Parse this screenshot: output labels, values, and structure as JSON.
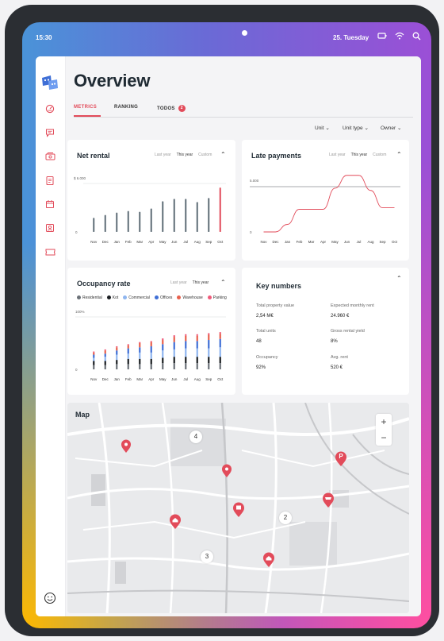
{
  "status_bar": {
    "time": "15:30",
    "date": "25. Tuesday"
  },
  "page": {
    "title": "Overview"
  },
  "tabs": [
    {
      "label": "METRICS",
      "active": true
    },
    {
      "label": "RANKING",
      "active": false
    },
    {
      "label": "TODOS",
      "active": false,
      "badge": "2"
    }
  ],
  "filters": [
    {
      "label": "Unit"
    },
    {
      "label": "Unit type"
    },
    {
      "label": "Owner"
    }
  ],
  "sidebar_icons": [
    "app-logo-icon",
    "dashboard-icon",
    "chat-icon",
    "money-icon",
    "documents-icon",
    "calendar-icon",
    "contacts-icon",
    "tickets-icon",
    "support-icon"
  ],
  "net_rental": {
    "title": "Net rental",
    "period_tabs": [
      "Last year",
      "This year",
      "Custom"
    ],
    "selected_period": "This year"
  },
  "late_payments": {
    "title": "Late payments",
    "period_tabs": [
      "Last year",
      "This year",
      "Custom"
    ],
    "selected_period": "This year"
  },
  "occupancy": {
    "title": "Occupancy rate",
    "period_tabs": [
      "Last year",
      "This year"
    ],
    "selected_period": "This year",
    "legend": [
      {
        "name": "Residential",
        "color": "#6b7178"
      },
      {
        "name": "Kot",
        "color": "#1b1e22"
      },
      {
        "name": "Commercial",
        "color": "#8fb6ef"
      },
      {
        "name": "Offices",
        "color": "#3f6fd6"
      },
      {
        "name": "Warehouse",
        "color": "#e8604c"
      },
      {
        "name": "Parking",
        "color": "#ef5a7a"
      }
    ]
  },
  "key_numbers": {
    "title": "Key numbers",
    "items": [
      {
        "label": "Total property value",
        "value": "2,54 M€"
      },
      {
        "label": "Expected monthly rent",
        "value": "24.960 €"
      },
      {
        "label": "Total units",
        "value": "48"
      },
      {
        "label": "Gross rental yield",
        "value": "8%"
      },
      {
        "label": "Occupancy",
        "value": "92%"
      },
      {
        "label": "Avg. rent",
        "value": "520 €"
      }
    ]
  },
  "map": {
    "title": "Map",
    "zoom_in": "+",
    "zoom_out": "−",
    "clusters": [
      "4",
      "2",
      "3"
    ],
    "parking_label": "P"
  },
  "chart_data": [
    {
      "type": "bar",
      "title": "Net rental",
      "categories": [
        "Nov",
        "Dec",
        "Jan",
        "Feb",
        "Mar",
        "Apr",
        "May",
        "Jun",
        "Jul",
        "Aug",
        "Sep",
        "Oct"
      ],
      "values": [
        1750,
        2100,
        2400,
        2600,
        2500,
        2900,
        3800,
        4100,
        4100,
        3700,
        4200,
        5500
      ],
      "highlight_index": 11,
      "yticks": [
        "0",
        "$ 6.000"
      ],
      "ylim": [
        0,
        6000
      ],
      "bar_color": "#5f6d77",
      "highlight_color": "#e24b5a"
    },
    {
      "type": "line",
      "title": "Late payments",
      "x": [
        "Nov",
        "Dec",
        "Jan",
        "Feb",
        "Mar",
        "Apr",
        "May",
        "Jun",
        "Jul",
        "Aug",
        "Sep",
        "Oct"
      ],
      "y": [
        0,
        0,
        1000,
        3000,
        3000,
        3000,
        5800,
        7500,
        7500,
        5500,
        3200,
        3200
      ],
      "yticks": [
        "0",
        "5.000"
      ],
      "ylim": [
        0,
        8000
      ],
      "line_color": "#e24b5a"
    },
    {
      "type": "bar",
      "stacked": true,
      "title": "Occupancy rate",
      "categories": [
        "Nov",
        "Dec",
        "Jan",
        "Feb",
        "Mar",
        "Apr",
        "May",
        "Jun",
        "Jul",
        "Aug",
        "Sep",
        "Oct"
      ],
      "yticks": [
        "0",
        "100%"
      ],
      "ylim": [
        0,
        100
      ],
      "series": [
        {
          "name": "Residential",
          "values": [
            8,
            8,
            10,
            10,
            10,
            10,
            12,
            12,
            12,
            12,
            12,
            12
          ]
        },
        {
          "name": "Kot",
          "values": [
            8,
            8,
            8,
            10,
            10,
            10,
            10,
            12,
            12,
            12,
            12,
            12
          ]
        },
        {
          "name": "Commercial",
          "values": [
            6,
            8,
            10,
            10,
            12,
            12,
            14,
            14,
            16,
            16,
            16,
            18
          ]
        },
        {
          "name": "Offices",
          "values": [
            6,
            6,
            8,
            10,
            10,
            12,
            12,
            14,
            14,
            14,
            16,
            16
          ]
        },
        {
          "name": "Warehouse",
          "values": [
            4,
            6,
            6,
            6,
            8,
            8,
            8,
            10,
            10,
            10,
            10,
            10
          ]
        },
        {
          "name": "Parking",
          "values": [
            2,
            2,
            2,
            2,
            2,
            2,
            3,
            3,
            3,
            3,
            3,
            3
          ]
        }
      ]
    }
  ]
}
